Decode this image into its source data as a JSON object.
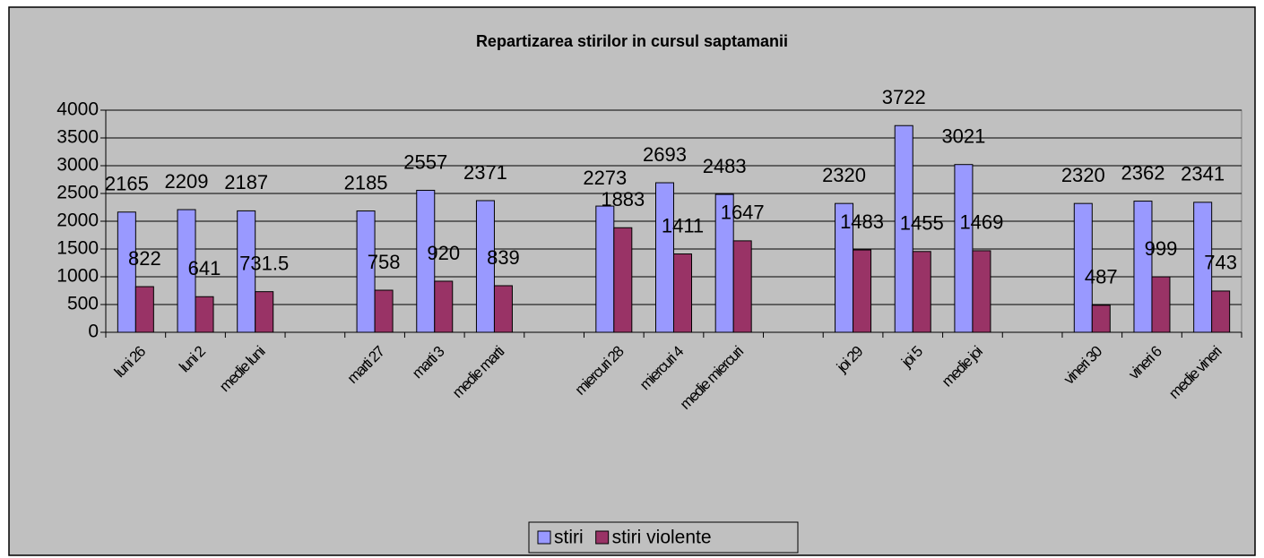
{
  "chart_data": {
    "type": "bar",
    "title": "Repartizarea stirilor in cursul saptamanii",
    "categories": [
      "luni 26",
      "luni 2",
      "medie luni",
      null,
      "marti 27",
      "marti 3",
      "medie marti",
      null,
      "miercuri 28",
      "miercuri 4",
      "medie miercuri",
      null,
      "joi 29",
      "joi 5",
      "medie joi",
      null,
      "vineri 30",
      "vineri 6",
      "medie vineri"
    ],
    "series": [
      {
        "name": "stiri",
        "color": "#9999ff",
        "values": [
          2165,
          2209,
          2187,
          null,
          2185,
          2557,
          2371,
          null,
          2273,
          2693,
          2483,
          null,
          2320,
          3722,
          3021,
          null,
          2320,
          2362,
          2341
        ]
      },
      {
        "name": "stiri violente",
        "color": "#993366",
        "values": [
          822,
          641,
          731.5,
          null,
          758,
          920,
          839,
          null,
          1883,
          1411,
          1647,
          null,
          1483,
          1455,
          1469,
          null,
          487,
          999,
          743
        ]
      }
    ],
    "ylim": [
      0,
      4000
    ],
    "yticks": [
      0,
      500,
      1000,
      1500,
      2000,
      2500,
      3000,
      3500,
      4000
    ],
    "grid": true,
    "legend": "bottom"
  }
}
